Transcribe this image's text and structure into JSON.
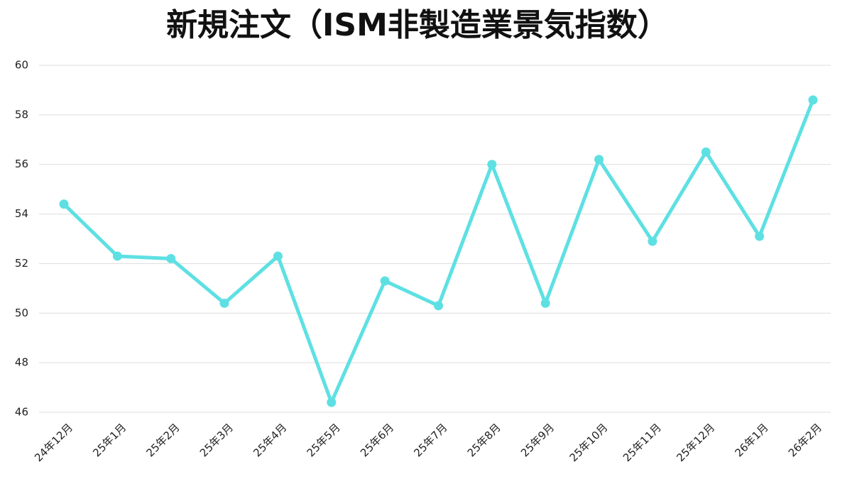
{
  "chart_data": {
    "type": "line",
    "title": "新規注文（ISM非製造業景気指数）",
    "categories": [
      "24年12月",
      "25年1月",
      "25年2月",
      "25年3月",
      "25年4月",
      "25年5月",
      "25年6月",
      "25年7月",
      "25年8月",
      "25年9月",
      "25年10月",
      "25年11月",
      "25年12月",
      "26年1月",
      "26年2月"
    ],
    "values": [
      54.4,
      52.3,
      52.2,
      50.4,
      52.3,
      46.4,
      51.3,
      50.3,
      56.0,
      50.4,
      56.2,
      52.9,
      56.5,
      53.1,
      58.6
    ],
    "color": "#5ee0e3",
    "ylim": [
      46,
      60
    ],
    "yticks": [
      46,
      48,
      50,
      52,
      54,
      56,
      58,
      60
    ],
    "grid": true
  }
}
